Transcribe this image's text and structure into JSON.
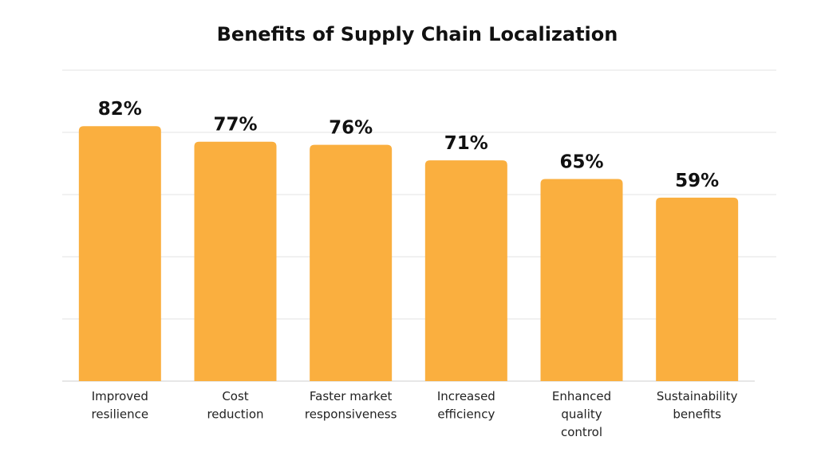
{
  "chart_data": {
    "type": "bar",
    "title": "Benefits of Supply Chain Localization",
    "categories": [
      "Improved resilience",
      "Cost reduction",
      "Faster market responsiveness",
      "Increased efficiency",
      "Enhanced quality control",
      "Sustainability benefits"
    ],
    "category_lines": [
      [
        "Improved",
        "resilience"
      ],
      [
        "Cost",
        "reduction"
      ],
      [
        "Faster market",
        "responsiveness"
      ],
      [
        "Increased",
        "efficiency"
      ],
      [
        "Enhanced",
        "quality",
        "control"
      ],
      [
        "Sustainability",
        "benefits"
      ]
    ],
    "values": [
      82,
      77,
      76,
      71,
      65,
      59
    ],
    "value_labels": [
      "82%",
      "77%",
      "76%",
      "71%",
      "65%",
      "59%"
    ],
    "ylim": [
      0,
      100
    ],
    "grid": true,
    "bar_color": "#FAAF3F",
    "legend": "none"
  }
}
